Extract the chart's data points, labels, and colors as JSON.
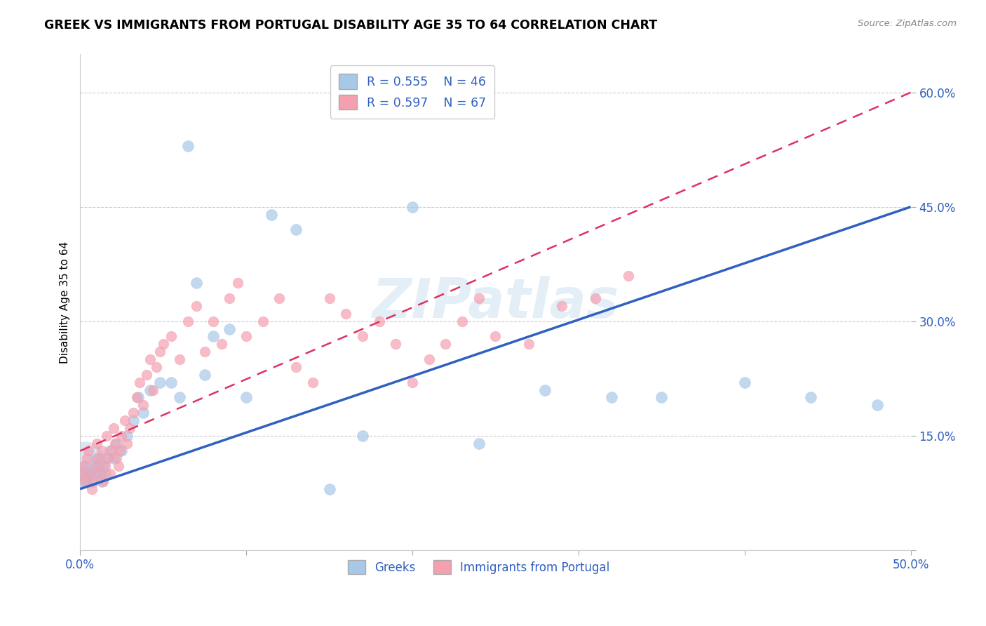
{
  "title": "GREEK VS IMMIGRANTS FROM PORTUGAL DISABILITY AGE 35 TO 64 CORRELATION CHART",
  "source": "Source: ZipAtlas.com",
  "xlabel_label": "Greeks",
  "xlabel_label2": "Immigrants from Portugal",
  "ylabel": "Disability Age 35 to 64",
  "xlim": [
    0.0,
    0.5
  ],
  "ylim": [
    0.0,
    0.65
  ],
  "xticks": [
    0.0,
    0.1,
    0.2,
    0.3,
    0.4,
    0.5
  ],
  "xticklabels": [
    "0.0%",
    "",
    "",
    "",
    "",
    "50.0%"
  ],
  "yticks": [
    0.0,
    0.15,
    0.3,
    0.45,
    0.6
  ],
  "yticklabels": [
    "",
    "15.0%",
    "30.0%",
    "45.0%",
    "60.0%"
  ],
  "legend_r1": "R = 0.555",
  "legend_n1": "N = 46",
  "legend_r2": "R = 0.597",
  "legend_n2": "N = 67",
  "blue_color": "#a8c8e8",
  "pink_color": "#f4a0b0",
  "blue_line_color": "#3060c0",
  "pink_line_color": "#e03060",
  "watermark": "ZIPatlas",
  "blue_line_x0": 0.0,
  "blue_line_y0": 0.08,
  "blue_line_x1": 0.5,
  "blue_line_y1": 0.45,
  "pink_line_x0": 0.0,
  "pink_line_y0": 0.13,
  "pink_line_x1": 0.5,
  "pink_line_y1": 0.6,
  "greek_x": [
    0.001,
    0.002,
    0.003,
    0.004,
    0.005,
    0.006,
    0.007,
    0.008,
    0.009,
    0.01,
    0.011,
    0.012,
    0.013,
    0.014,
    0.015,
    0.016,
    0.018,
    0.02,
    0.022,
    0.025,
    0.028,
    0.032,
    0.035,
    0.038,
    0.042,
    0.048,
    0.055,
    0.06,
    0.065,
    0.07,
    0.075,
    0.08,
    0.09,
    0.1,
    0.115,
    0.13,
    0.15,
    0.17,
    0.2,
    0.24,
    0.28,
    0.32,
    0.35,
    0.4,
    0.44,
    0.48
  ],
  "greek_y": [
    0.09,
    0.1,
    0.11,
    0.09,
    0.1,
    0.1,
    0.09,
    0.11,
    0.1,
    0.12,
    0.11,
    0.1,
    0.09,
    0.11,
    0.1,
    0.12,
    0.13,
    0.12,
    0.14,
    0.13,
    0.15,
    0.17,
    0.2,
    0.18,
    0.21,
    0.22,
    0.22,
    0.2,
    0.53,
    0.35,
    0.23,
    0.28,
    0.29,
    0.2,
    0.44,
    0.42,
    0.08,
    0.15,
    0.45,
    0.14,
    0.21,
    0.2,
    0.2,
    0.22,
    0.2,
    0.19
  ],
  "portugal_x": [
    0.001,
    0.002,
    0.003,
    0.004,
    0.005,
    0.006,
    0.007,
    0.008,
    0.009,
    0.01,
    0.011,
    0.012,
    0.013,
    0.014,
    0.015,
    0.016,
    0.017,
    0.018,
    0.019,
    0.02,
    0.021,
    0.022,
    0.023,
    0.024,
    0.025,
    0.027,
    0.028,
    0.03,
    0.032,
    0.034,
    0.036,
    0.038,
    0.04,
    0.042,
    0.044,
    0.046,
    0.048,
    0.05,
    0.055,
    0.06,
    0.065,
    0.07,
    0.075,
    0.08,
    0.085,
    0.09,
    0.095,
    0.1,
    0.11,
    0.12,
    0.13,
    0.14,
    0.15,
    0.16,
    0.17,
    0.18,
    0.19,
    0.2,
    0.21,
    0.22,
    0.23,
    0.24,
    0.25,
    0.27,
    0.29,
    0.31,
    0.33
  ],
  "portugal_y": [
    0.1,
    0.11,
    0.09,
    0.12,
    0.13,
    0.1,
    0.08,
    0.09,
    0.11,
    0.14,
    0.12,
    0.1,
    0.13,
    0.09,
    0.11,
    0.15,
    0.12,
    0.1,
    0.13,
    0.16,
    0.14,
    0.12,
    0.11,
    0.13,
    0.15,
    0.17,
    0.14,
    0.16,
    0.18,
    0.2,
    0.22,
    0.19,
    0.23,
    0.25,
    0.21,
    0.24,
    0.26,
    0.27,
    0.28,
    0.25,
    0.3,
    0.32,
    0.26,
    0.3,
    0.27,
    0.33,
    0.35,
    0.28,
    0.3,
    0.33,
    0.24,
    0.22,
    0.33,
    0.31,
    0.28,
    0.3,
    0.27,
    0.22,
    0.25,
    0.27,
    0.3,
    0.33,
    0.28,
    0.27,
    0.32,
    0.33,
    0.36
  ]
}
